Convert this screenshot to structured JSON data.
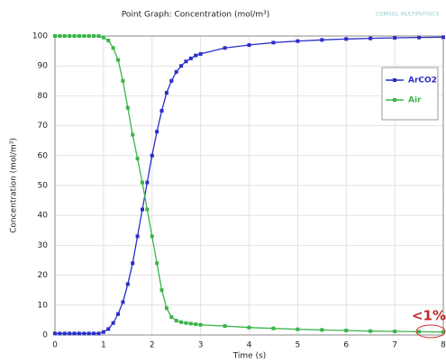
{
  "chart_data": {
    "type": "line",
    "title": "Point Graph: Concentration (mol/m³)",
    "logo": "COMSOL MULTIPHYSICS",
    "x_label": "Time (s)",
    "y_label": "Concentration (mol/m³)",
    "annotation": "<1%",
    "x": [
      0,
      0.1,
      0.2,
      0.3,
      0.4,
      0.5,
      0.6,
      0.7,
      0.8,
      0.9,
      1.0,
      1.1,
      1.2,
      1.3,
      1.4,
      1.5,
      1.6,
      1.7,
      1.8,
      1.9,
      2.0,
      2.1,
      2.2,
      2.3,
      2.4,
      2.5,
      2.6,
      2.7,
      2.8,
      2.9,
      3.0,
      3.5,
      4,
      4.5,
      5,
      5.5,
      6,
      6.5,
      7,
      7.5,
      8
    ],
    "series": [
      {
        "name": "ArCO2",
        "color": "#2a2ec8",
        "values": [
          0.5,
          0.5,
          0.5,
          0.5,
          0.5,
          0.5,
          0.5,
          0.5,
          0.5,
          0.5,
          1,
          2,
          4,
          7,
          11,
          17,
          24,
          33,
          42,
          51,
          60,
          68,
          75,
          81,
          85,
          88,
          90,
          91.5,
          92.5,
          93.5,
          94,
          96,
          97,
          97.8,
          98.3,
          98.7,
          99,
          99.2,
          99.4,
          99.5,
          99.6
        ]
      },
      {
        "name": "Air",
        "color": "#3cb54a",
        "values": [
          100,
          100,
          100,
          100,
          100,
          100,
          100,
          100,
          100,
          100,
          99.5,
          98.5,
          96,
          92,
          85,
          76,
          67,
          59,
          51,
          42,
          33,
          24,
          15,
          9,
          6,
          4.8,
          4.3,
          4,
          3.8,
          3.6,
          3.4,
          3,
          2.5,
          2.2,
          1.9,
          1.7,
          1.5,
          1.3,
          1.2,
          1.1,
          1
        ]
      }
    ],
    "xlim": [
      0,
      8
    ],
    "xticks": [
      0,
      1,
      2,
      3,
      4,
      5,
      6,
      7,
      8
    ],
    "ylim": [
      0,
      100
    ],
    "yticks": [
      0,
      10,
      20,
      30,
      40,
      50,
      60,
      70,
      80,
      90,
      100
    ],
    "grid": true,
    "legend": "upper right"
  }
}
